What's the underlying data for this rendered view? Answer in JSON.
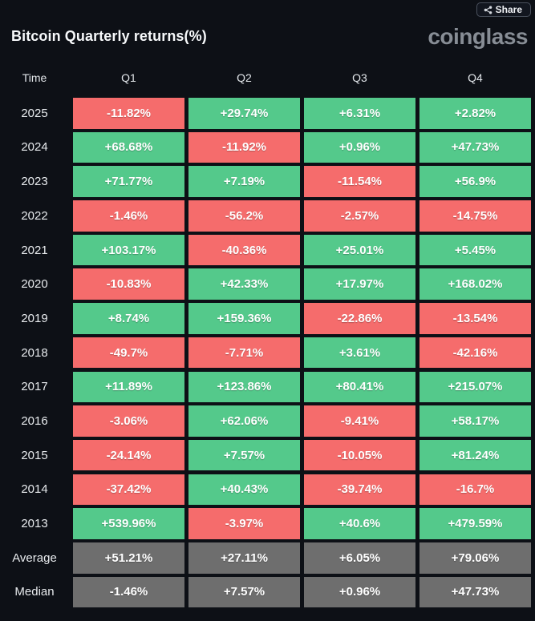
{
  "header": {
    "share_label": "Share",
    "title": "Bitcoin Quarterly returns(%)",
    "logo_text": "coinglass"
  },
  "table_header": {
    "time": "Time",
    "q1": "Q1",
    "q2": "Q2",
    "q3": "Q3",
    "q4": "Q4"
  },
  "colors": {
    "background": "#0d1016",
    "positive": "#54c98b",
    "negative": "#f56c6c",
    "summary": "#6e6e6e",
    "cell_text": "#ffffff",
    "logo": "#878d95",
    "share_border": "#4a515d"
  },
  "chart_data": {
    "type": "heatmap",
    "title": "Bitcoin Quarterly returns(%)",
    "columns": [
      "Q1",
      "Q2",
      "Q3",
      "Q4"
    ],
    "row_axis_label": "Time",
    "value_unit": "percent",
    "value_format": "signed percent with % suffix, e.g. +29.74% / -11.82%",
    "legend": "green = positive quarterly return, red = negative quarterly return, gray = summary row",
    "rows": [
      {
        "label": "2025",
        "values": [
          -11.82,
          29.74,
          6.31,
          2.82
        ]
      },
      {
        "label": "2024",
        "values": [
          68.68,
          -11.92,
          0.96,
          47.73
        ]
      },
      {
        "label": "2023",
        "values": [
          71.77,
          7.19,
          -11.54,
          56.9
        ]
      },
      {
        "label": "2022",
        "values": [
          -1.46,
          -56.2,
          -2.57,
          -14.75
        ]
      },
      {
        "label": "2021",
        "values": [
          103.17,
          -40.36,
          25.01,
          5.45
        ]
      },
      {
        "label": "2020",
        "values": [
          -10.83,
          42.33,
          17.97,
          168.02
        ]
      },
      {
        "label": "2019",
        "values": [
          8.74,
          159.36,
          -22.86,
          -13.54
        ]
      },
      {
        "label": "2018",
        "values": [
          -49.7,
          -7.71,
          3.61,
          -42.16
        ]
      },
      {
        "label": "2017",
        "values": [
          11.89,
          123.86,
          80.41,
          215.07
        ]
      },
      {
        "label": "2016",
        "values": [
          -3.06,
          62.06,
          -9.41,
          58.17
        ]
      },
      {
        "label": "2015",
        "values": [
          -24.14,
          7.57,
          -10.05,
          81.24
        ]
      },
      {
        "label": "2014",
        "values": [
          -37.42,
          40.43,
          -39.74,
          -16.7
        ]
      },
      {
        "label": "2013",
        "values": [
          539.96,
          -3.97,
          40.6,
          479.59
        ]
      },
      {
        "label": "Average",
        "values": [
          51.21,
          27.11,
          6.05,
          79.06
        ],
        "summary": true
      },
      {
        "label": "Median",
        "values": [
          -1.46,
          7.57,
          0.96,
          47.73
        ],
        "summary": true
      }
    ]
  }
}
